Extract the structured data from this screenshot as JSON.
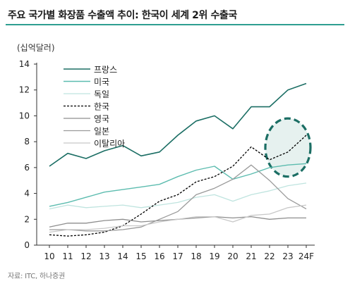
{
  "title": "주요 국가별 화장품 수출액 추이: 한국이 세계 2위 수출국",
  "source": "자료: ITC, 하나증권",
  "chart_data": {
    "type": "line",
    "title": "주요 국가별 화장품 수출액 추이: 한국이 세계 2위 수출국",
    "ylabel": "(십억달러)",
    "xlabel": "",
    "categories": [
      "10",
      "11",
      "12",
      "13",
      "14",
      "15",
      "16",
      "17",
      "18",
      "19",
      "20",
      "21",
      "22",
      "23",
      "24F"
    ],
    "ylim": [
      0,
      14
    ],
    "yticks": [
      0,
      2,
      4,
      6,
      8,
      10,
      12,
      14
    ],
    "legend_position": "top-left",
    "series": [
      {
        "name": "프랑스",
        "color": "#1b6e64",
        "dash": "",
        "width": 1.6,
        "values": [
          6.1,
          7.1,
          6.7,
          7.3,
          7.7,
          6.9,
          7.2,
          8.5,
          9.6,
          10.0,
          9.0,
          10.7,
          10.7,
          12.0,
          12.5
        ]
      },
      {
        "name": "미국",
        "color": "#5cbcaf",
        "dash": "",
        "width": 1.4,
        "values": [
          3.0,
          3.3,
          3.7,
          4.1,
          4.3,
          4.5,
          4.7,
          5.3,
          5.8,
          6.1,
          5.1,
          5.5,
          6.0,
          6.2,
          6.3
        ]
      },
      {
        "name": "독일",
        "color": "#bfe4df",
        "dash": "",
        "width": 1.3,
        "values": [
          2.8,
          3.1,
          2.9,
          3.0,
          3.1,
          2.9,
          3.1,
          3.3,
          3.7,
          3.9,
          3.4,
          3.9,
          4.2,
          4.6,
          4.8
        ]
      },
      {
        "name": "한국",
        "color": "#000000",
        "dash": "3,2",
        "width": 1.3,
        "values": [
          0.8,
          0.7,
          0.8,
          1.0,
          1.5,
          2.4,
          3.4,
          3.9,
          4.9,
          5.3,
          6.1,
          7.6,
          6.6,
          7.2,
          8.5
        ]
      },
      {
        "name": "영국",
        "color": "#8e8e8e",
        "dash": "",
        "width": 1.3,
        "values": [
          1.4,
          1.7,
          1.7,
          1.9,
          2.0,
          1.8,
          1.9,
          2.0,
          2.1,
          2.2,
          2.1,
          2.2,
          2.0,
          2.1,
          2.1
        ]
      },
      {
        "name": "일본",
        "color": "#9a9a9a",
        "dash": "",
        "width": 1.3,
        "values": [
          1.2,
          1.2,
          1.1,
          1.1,
          1.2,
          1.4,
          2.0,
          2.6,
          3.9,
          4.4,
          5.1,
          6.2,
          5.0,
          3.6,
          2.8
        ]
      },
      {
        "name": "이탈리아",
        "color": "#c8c8c8",
        "dash": "",
        "width": 1.3,
        "values": [
          1.0,
          1.2,
          1.2,
          1.3,
          1.5,
          1.5,
          1.8,
          2.0,
          2.2,
          2.2,
          1.8,
          2.3,
          2.4,
          2.9,
          3.1
        ]
      }
    ],
    "highlight": {
      "shape": "ellipse",
      "x_range": [
        "22",
        "24F"
      ],
      "y_range": [
        5.3,
        9.8
      ],
      "color": "#1b6e64",
      "fill": "#e6f1ef"
    }
  }
}
